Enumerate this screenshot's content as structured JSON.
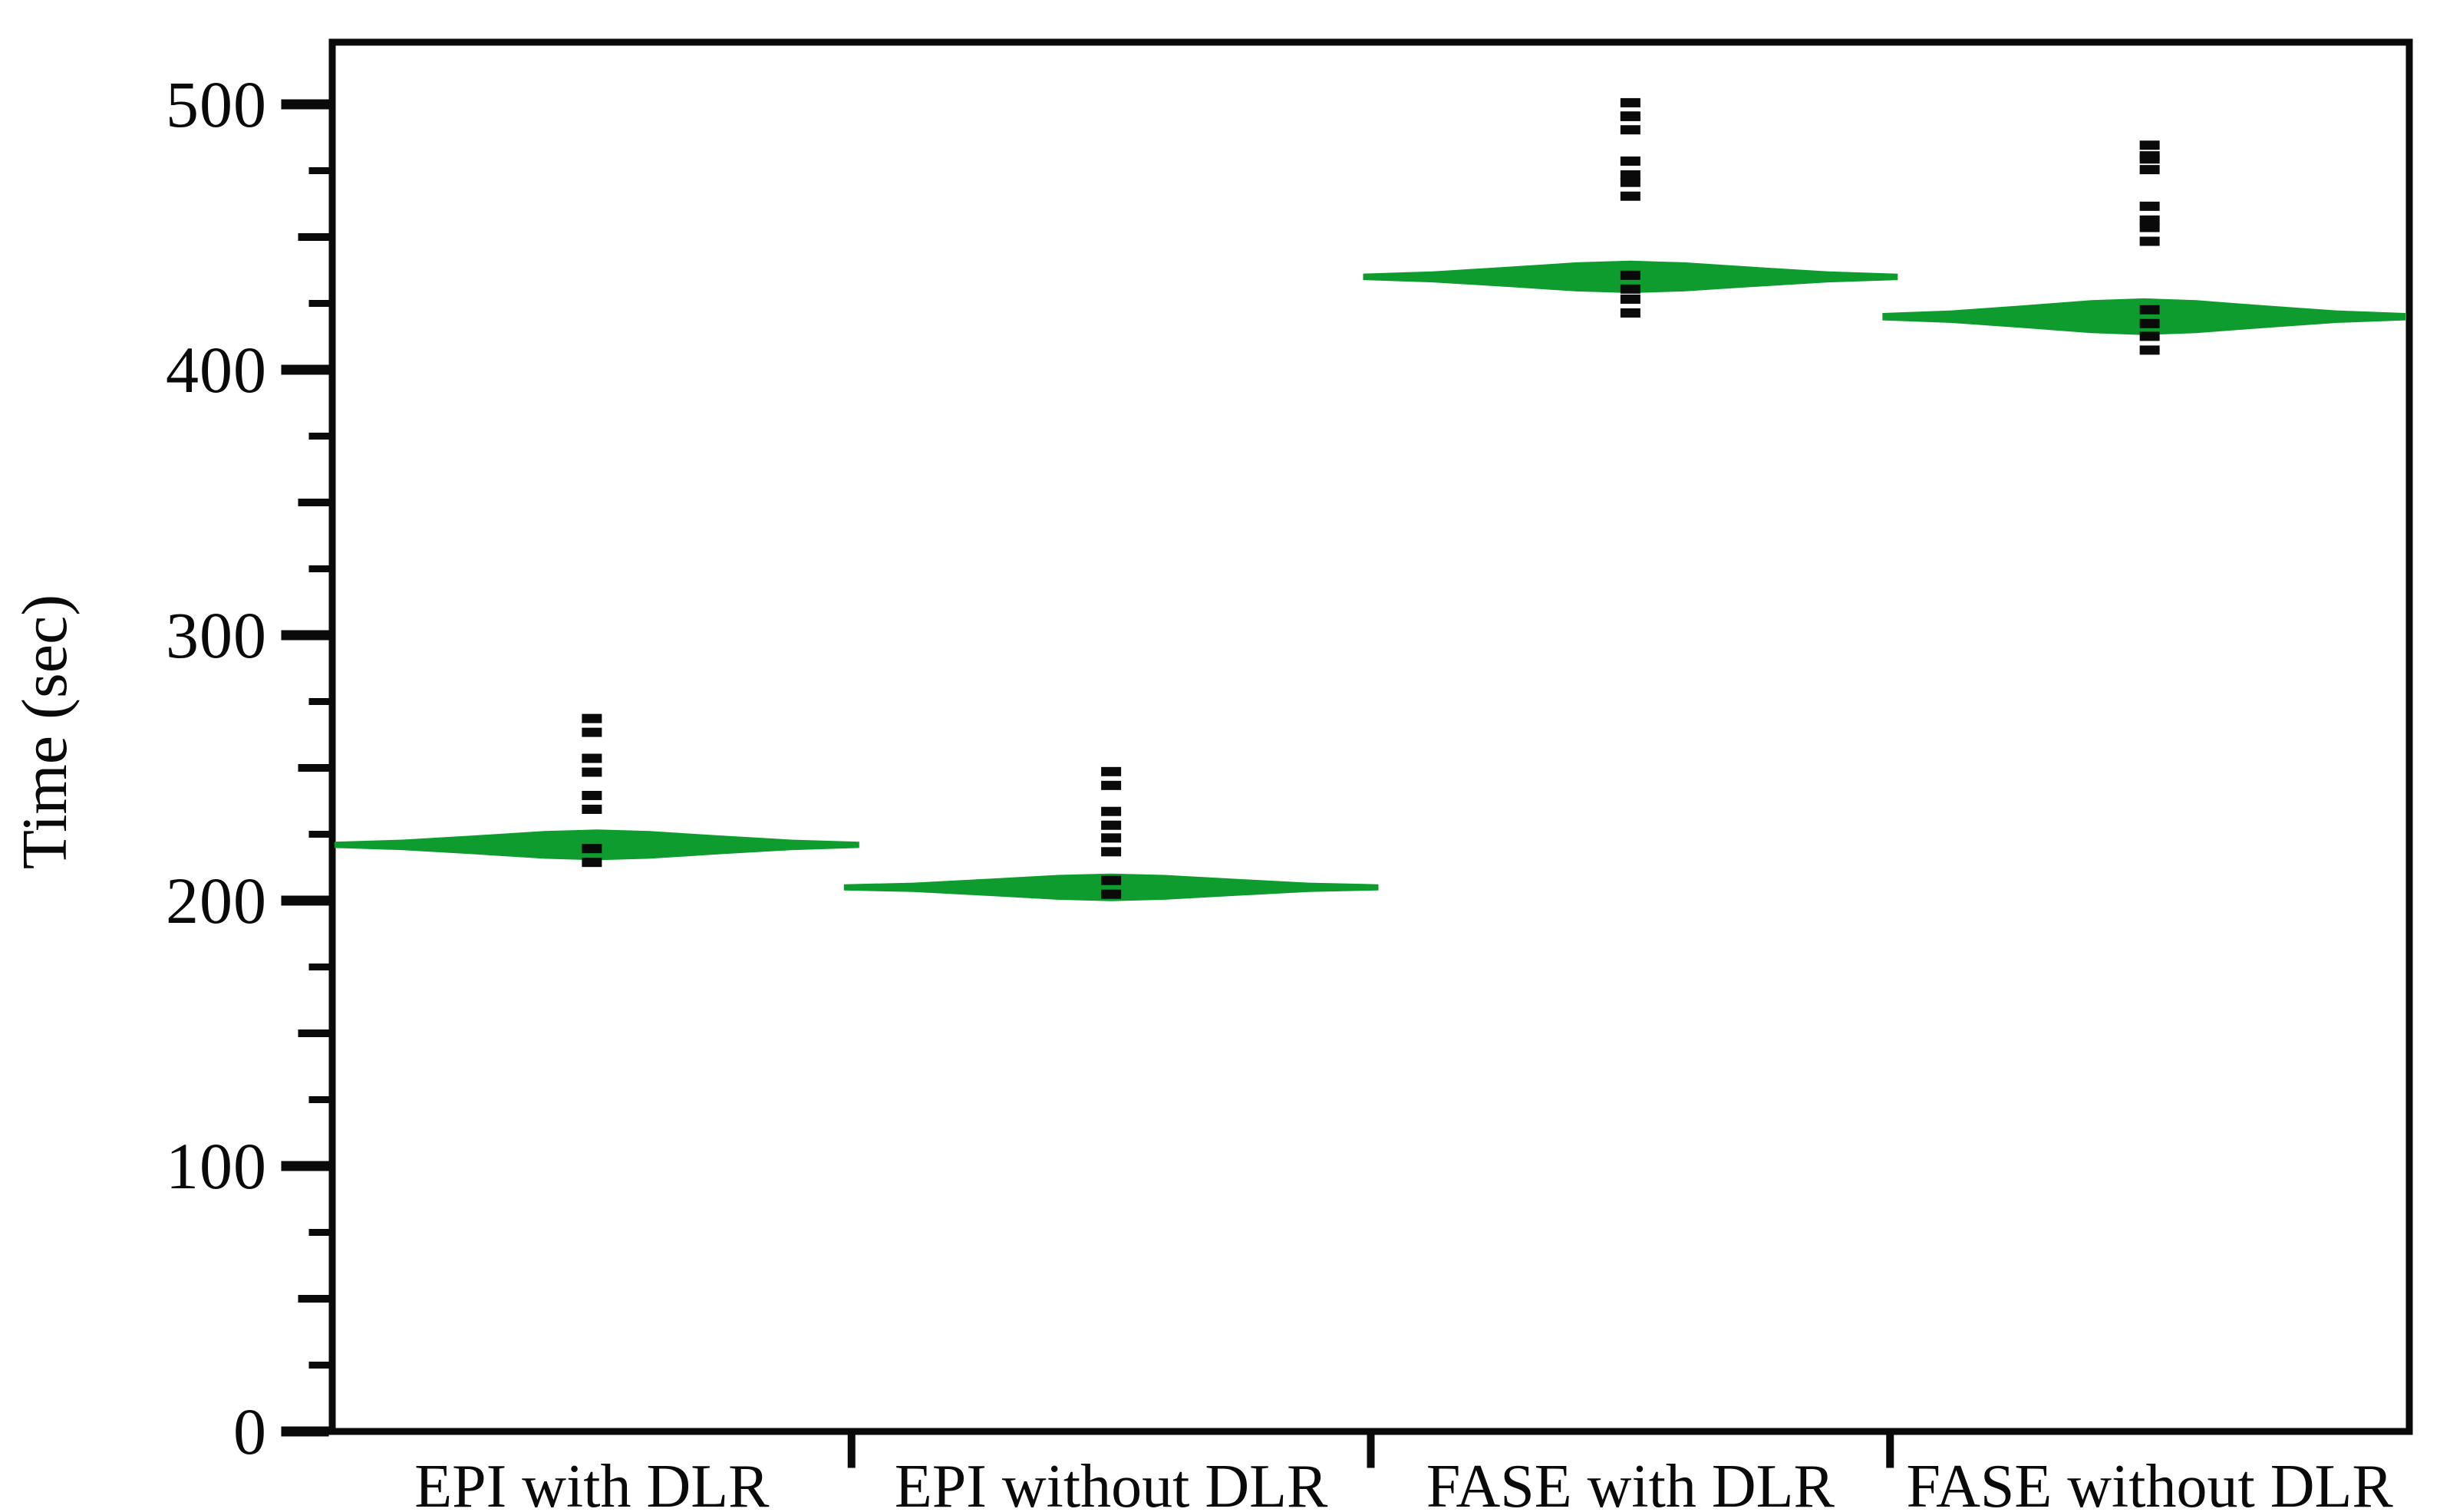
{
  "figure": {
    "background": "#ffffff",
    "axis_color": "#0a0a0a"
  },
  "chart_data": {
    "type": "violin",
    "title": "",
    "ylabel": "Time (sec)",
    "units": "sec",
    "ylim": [
      0,
      523
    ],
    "ytick_major_step": 100,
    "ytick_minor_step": 25,
    "ytick_labels": [
      "0",
      "100",
      "200",
      "300",
      "400",
      "500"
    ],
    "grid": false,
    "legend": false,
    "violin_color": "#0d9c2d",
    "point_color": "#0a0a0a",
    "categories": [
      "EPI with DLR",
      "EPI without DLR",
      "FASE with DLR",
      "FASE without DLR"
    ],
    "series": [
      {
        "name": "EPI with DLR",
        "center": 221,
        "spread_sec": 5.8,
        "points": [
          266,
          251,
          237,
          217
        ]
      },
      {
        "name": "EPI without DLR",
        "center": 205,
        "spread_sec": 5.2,
        "points": [
          246,
          231,
          221,
          205
        ]
      },
      {
        "name": "FASE with DLR",
        "center": 435,
        "spread_sec": 6.1,
        "points": [
          498,
          493,
          476,
          468,
          433,
          424
        ]
      },
      {
        "name": "FASE without DLR",
        "center": 420,
        "spread_sec": 6.9,
        "points": [
          482,
          478,
          459,
          451,
          420,
          410
        ]
      }
    ]
  }
}
